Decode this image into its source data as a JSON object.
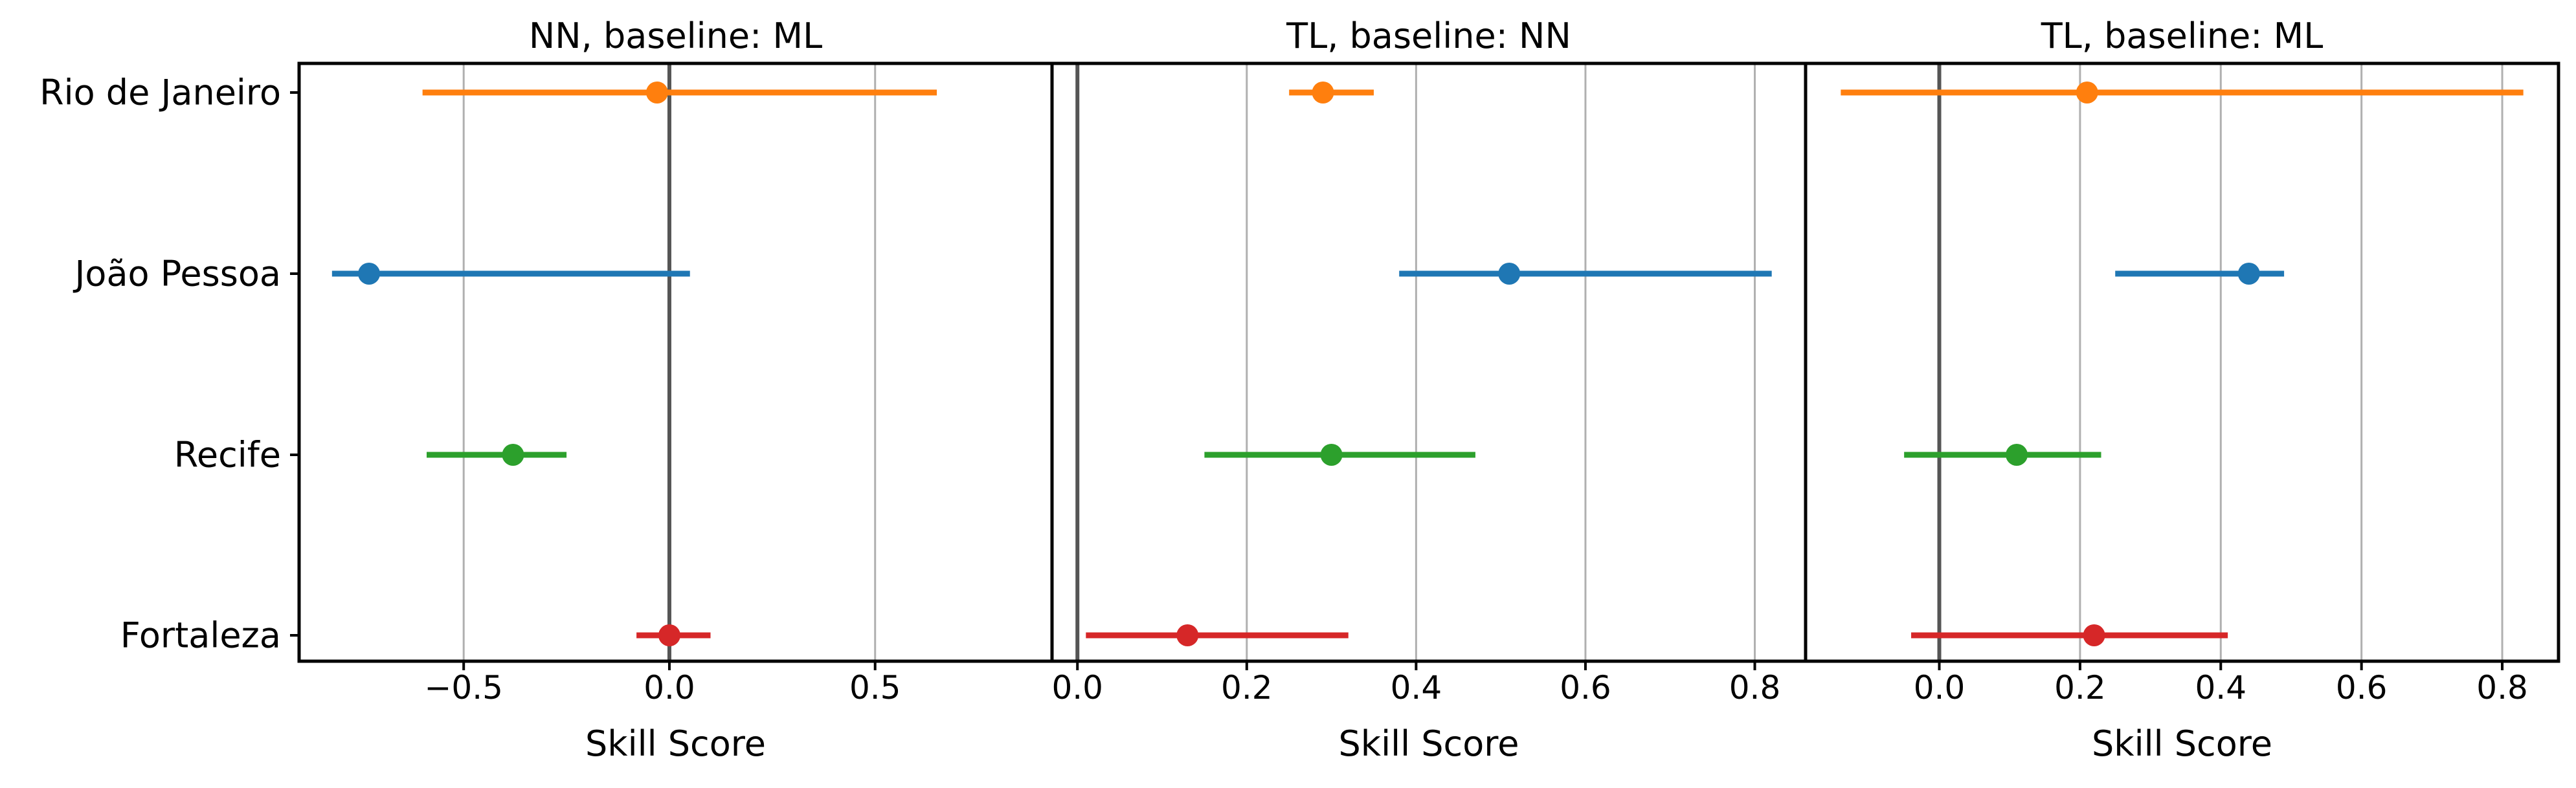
{
  "chart_data": {
    "type": "scatter",
    "style": "point estimate with interval bars",
    "categories": [
      "Rio de Janeiro",
      "João Pessoa",
      "Recife",
      "Fortaleza"
    ],
    "category_colors": {
      "Rio de Janeiro": "#ff7f0e",
      "João Pessoa": "#1f77b4",
      "Recife": "#2ca02c",
      "Fortaleza": "#d62728"
    },
    "reference_line_color": "#555555",
    "grid": "x",
    "panels": [
      {
        "title": "NN, baseline: ML",
        "xlabel": "Skill Score",
        "xlim": [
          -0.9,
          0.93
        ],
        "xticks": [
          -0.5,
          0.0,
          0.5
        ],
        "xtick_labels": [
          "−0.5",
          "0.0",
          "0.5"
        ],
        "reference_x": 0.0,
        "points": [
          {
            "category": "Rio de Janeiro",
            "value": -0.03,
            "low": -0.6,
            "high": 0.65
          },
          {
            "category": "João Pessoa",
            "value": -0.73,
            "low": -0.82,
            "high": 0.05
          },
          {
            "category": "Recife",
            "value": -0.38,
            "low": -0.59,
            "high": -0.25
          },
          {
            "category": "Fortaleza",
            "value": 0.0,
            "low": -0.08,
            "high": 0.1
          }
        ]
      },
      {
        "title": "TL, baseline: NN",
        "xlabel": "Skill Score",
        "xlim": [
          -0.03,
          0.86
        ],
        "xticks": [
          0.0,
          0.2,
          0.4,
          0.6,
          0.8
        ],
        "xtick_labels": [
          "0.0",
          "0.2",
          "0.4",
          "0.6",
          "0.8"
        ],
        "reference_x": 0.0,
        "points": [
          {
            "category": "Rio de Janeiro",
            "value": 0.29,
            "low": 0.25,
            "high": 0.35
          },
          {
            "category": "João Pessoa",
            "value": 0.51,
            "low": 0.38,
            "high": 0.82
          },
          {
            "category": "Recife",
            "value": 0.3,
            "low": 0.15,
            "high": 0.47
          },
          {
            "category": "Fortaleza",
            "value": 0.13,
            "low": 0.01,
            "high": 0.32
          }
        ]
      },
      {
        "title": "TL, baseline: ML",
        "xlabel": "Skill Score",
        "xlim": [
          -0.19,
          0.88
        ],
        "xticks": [
          0.0,
          0.2,
          0.4,
          0.6,
          0.8
        ],
        "xtick_labels": [
          "0.0",
          "0.2",
          "0.4",
          "0.6",
          "0.8"
        ],
        "reference_x": 0.0,
        "points": [
          {
            "category": "Rio de Janeiro",
            "value": 0.21,
            "low": -0.14,
            "high": 0.83
          },
          {
            "category": "João Pessoa",
            "value": 0.44,
            "low": 0.25,
            "high": 0.49
          },
          {
            "category": "Recife",
            "value": 0.11,
            "low": -0.05,
            "high": 0.23
          },
          {
            "category": "Fortaleza",
            "value": 0.22,
            "low": -0.04,
            "high": 0.41
          }
        ]
      }
    ]
  }
}
